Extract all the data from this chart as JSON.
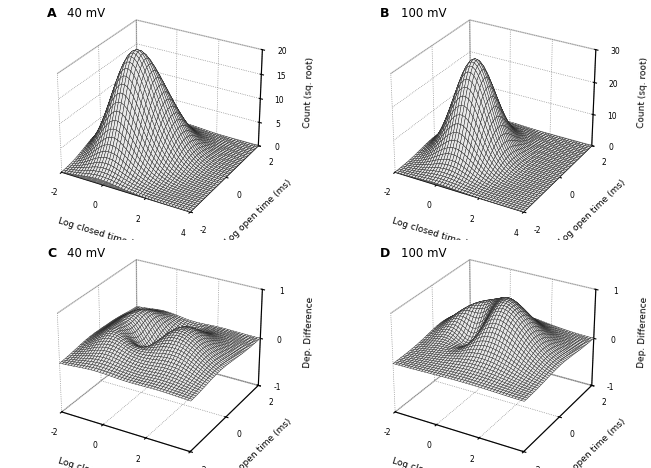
{
  "panels": [
    {
      "label": "A",
      "voltage": "40 mV",
      "type": "count",
      "zlabel": "Count (sq. root)",
      "zlim": [
        0,
        20
      ],
      "zticks": [
        0,
        5,
        10,
        15,
        20
      ]
    },
    {
      "label": "B",
      "voltage": "100 mV",
      "type": "count",
      "zlabel": "Count (sq. root)",
      "zlim": [
        0,
        30
      ],
      "zticks": [
        0,
        10,
        20,
        30
      ]
    },
    {
      "label": "C",
      "voltage": "40 mV",
      "type": "dep",
      "zlabel": "Dep. Difference",
      "zlim": [
        -1,
        1
      ],
      "zticks": [
        -1,
        0,
        1
      ]
    },
    {
      "label": "D",
      "voltage": "100 mV",
      "type": "dep",
      "zlabel": "Dep. Difference",
      "zlim": [
        -1,
        1
      ],
      "zticks": [
        -1,
        0,
        1
      ]
    }
  ],
  "closed_range": [
    -2,
    4
  ],
  "open_range": [
    -2,
    2
  ],
  "xlabel": "Log closed time (ms)",
  "ylabel": "Log open time (ms)",
  "xticks": [
    -2,
    0,
    2,
    4
  ],
  "yticks": [
    -2,
    0,
    2
  ],
  "background_color": "#ffffff",
  "linewidth": 0.3,
  "elev": 28,
  "azim": -60
}
